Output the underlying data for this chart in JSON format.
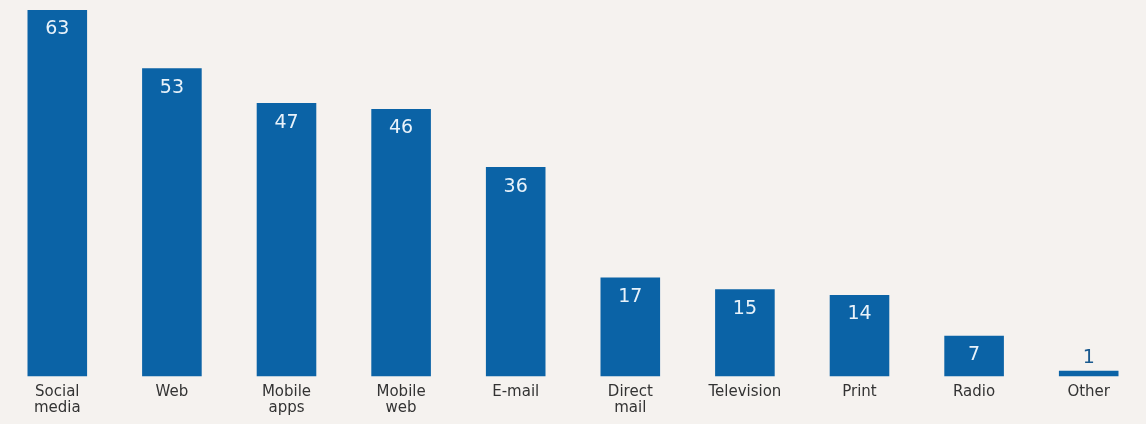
{
  "chart_data": {
    "type": "bar",
    "categories": [
      "Social media",
      "Web",
      "Mobile apps",
      "Mobile web",
      "E-mail",
      "Direct mail",
      "Television",
      "Print",
      "Radio",
      "Other"
    ],
    "values": [
      63,
      53,
      47,
      46,
      36,
      17,
      15,
      14,
      7,
      1
    ],
    "color": "#0b63a6",
    "data_labels": true,
    "grid": false,
    "legend": false
  }
}
